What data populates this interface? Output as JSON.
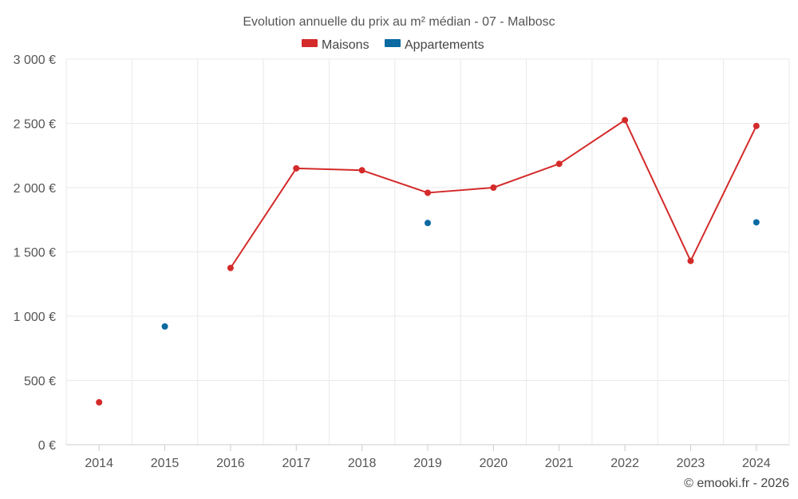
{
  "chart_data": {
    "type": "line",
    "title": "Evolution annuelle du prix au m² médian - 07 - Malbosc",
    "categories": [
      "2014",
      "2015",
      "2016",
      "2017",
      "2018",
      "2019",
      "2020",
      "2021",
      "2022",
      "2023",
      "2024"
    ],
    "series": [
      {
        "name": "Maisons",
        "color": "#d42a2a",
        "values": [
          330,
          null,
          1375,
          2150,
          2135,
          1960,
          2000,
          2185,
          2525,
          1430,
          2480
        ]
      },
      {
        "name": "Appartements",
        "color": "#0a6aa1",
        "values": [
          null,
          920,
          null,
          null,
          null,
          1725,
          null,
          null,
          null,
          null,
          1730
        ]
      }
    ],
    "ylim": [
      0,
      3000
    ],
    "yticks": [
      0,
      500,
      1000,
      1500,
      2000,
      2500,
      3000
    ],
    "ytick_labels": [
      "0 €",
      "500 €",
      "1 000 €",
      "1 500 €",
      "2 000 €",
      "2 500 €",
      "3 000 €"
    ],
    "xlabel": "",
    "ylabel": "",
    "grid": true,
    "legend_position": "top-center"
  },
  "credit": "© emooki.fr - 2026"
}
